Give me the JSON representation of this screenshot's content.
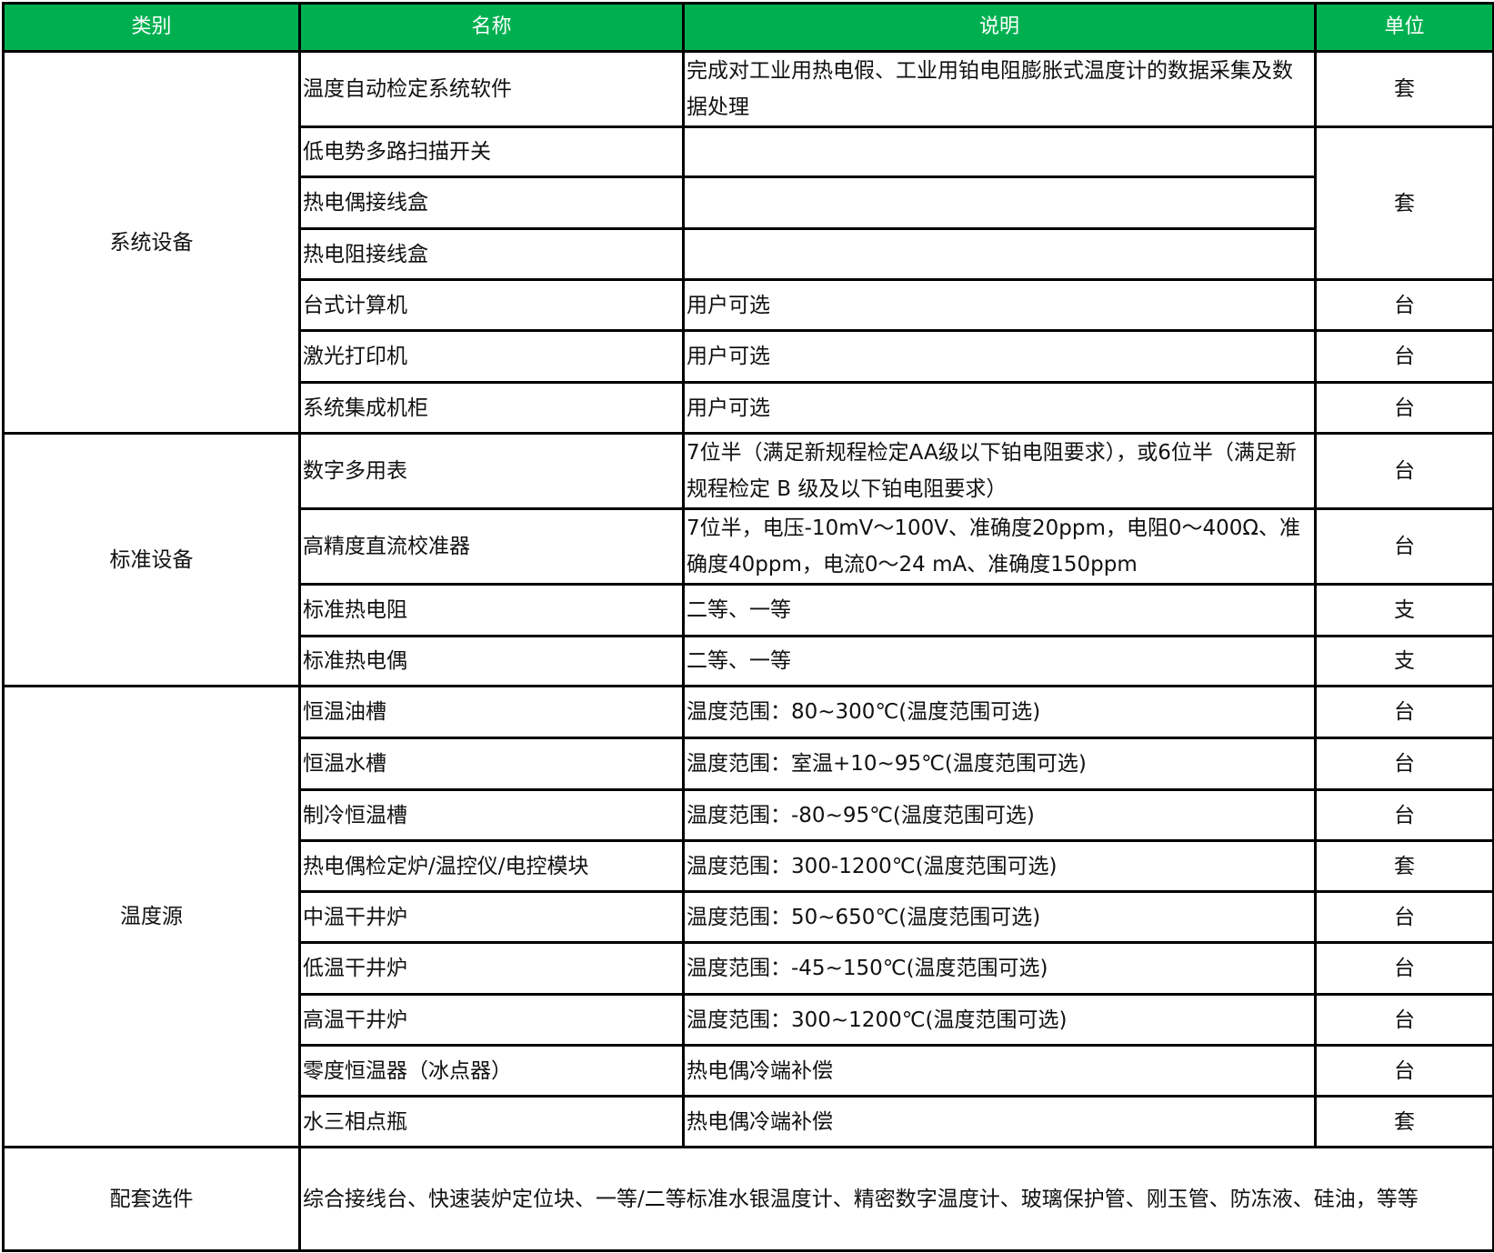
{
  "header": {
    "category": "类别",
    "name": "名称",
    "description": "说明",
    "unit": "单位"
  },
  "colors": {
    "header_bg": "#00b050",
    "header_text": "#ffffff",
    "border": "#000000"
  },
  "groups": [
    {
      "category": "系统设备",
      "rows": [
        {
          "name": "温度自动检定系统软件",
          "description": "完成对工业用热电假、工业用铂电阻膨胀式温度计的数据采集及数据处理",
          "unit": "套"
        },
        {
          "name": "低电势多路扫描开关",
          "description": "",
          "unit": "套"
        },
        {
          "name": "热电偶接线盒",
          "description": ""
        },
        {
          "name": "热电阻接线盒",
          "description": ""
        },
        {
          "name": "台式计算机",
          "description": "用户可选",
          "unit": "台"
        },
        {
          "name": "激光打印机",
          "description": "用户可选",
          "unit": "台"
        },
        {
          "name": "系统集成机柜",
          "description": "用户可选",
          "unit": "台"
        }
      ]
    },
    {
      "category": "标准设备",
      "rows": [
        {
          "name": "数字多用表",
          "description": "7位半（满足新规程检定AA级以下铂电阻要求），或6位半（满足新规程检定 B 级及以下铂电阻要求）",
          "unit": "台"
        },
        {
          "name": "高精度直流校准器",
          "description": "7位半，电压-10mV～100V、准确度20ppm，电阻0～400Ω、准确度40ppm，电流0～24 mA、准确度150ppm",
          "unit": "台"
        },
        {
          "name": "标准热电阻",
          "description": "二等、一等",
          "unit": "支"
        },
        {
          "name": "标准热电偶",
          "description": "二等、一等",
          "unit": "支"
        }
      ]
    },
    {
      "category": "温度源",
      "rows": [
        {
          "name": "恒温油槽",
          "description": "温度范围：80~300℃(温度范围可选)",
          "unit": "台"
        },
        {
          "name": "恒温水槽",
          "description": "温度范围：室温+10~95℃(温度范围可选)",
          "unit": "台"
        },
        {
          "name": "制冷恒温槽",
          "description": "温度范围：-80~95℃(温度范围可选)",
          "unit": "台"
        },
        {
          "name": "热电偶检定炉/温控仪/电控模块",
          "description": "温度范围：300-1200℃(温度范围可选)",
          "unit": "套"
        },
        {
          "name": "中温干井炉",
          "description": "温度范围：50~650℃(温度范围可选)",
          "unit": "台"
        },
        {
          "name": "低温干井炉",
          "description": "温度范围：-45~150℃(温度范围可选)",
          "unit": "台"
        },
        {
          "name": "高温干井炉",
          "description": "温度范围：300~1200℃(温度范围可选)",
          "unit": "台"
        },
        {
          "name": "零度恒温器（冰点器）",
          "description": "热电偶冷端补偿",
          "unit": "台"
        },
        {
          "name": "水三相点瓶",
          "description": "热电偶冷端补偿",
          "unit": "套"
        }
      ]
    }
  ],
  "accessories": {
    "category": "配套选件",
    "description": "综合接线台、快速装炉定位块、一等/二等标准水银温度计、精密数字温度计、玻璃保护管、刚玉管、防冻液、硅油，等等"
  }
}
